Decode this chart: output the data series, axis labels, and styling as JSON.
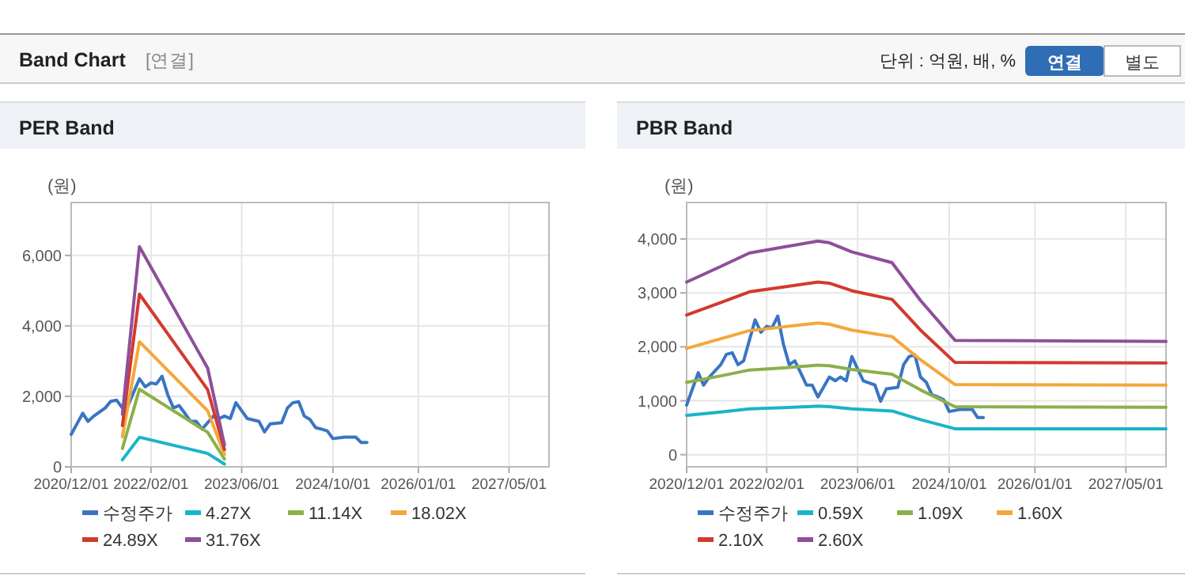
{
  "chart_data": [
    {
      "type": "other",
      "title": "Band Chart",
      "annotations": [
        "[연결]",
        "단위 : 억원, 배, %",
        "연결",
        "별도"
      ]
    },
    {
      "type": "line",
      "title": "PER Band",
      "ylabel": "(원)",
      "xlim": [
        "2020-12-01",
        "2027-12-01"
      ],
      "xticks": [
        {
          "value": "2020-12-01",
          "label": "2020/12/01"
        },
        {
          "value": "2022-02-01",
          "label": "2022/02/01"
        },
        {
          "value": "2023-06-01",
          "label": "2023/06/01"
        },
        {
          "value": "2024-10-01",
          "label": "2024/10/01"
        },
        {
          "value": "2026-01-01",
          "label": "2026/01/01"
        },
        {
          "value": "2027-05-01",
          "label": "2027/05/01"
        }
      ],
      "ylim": [
        0,
        7500
      ],
      "yticks": [
        {
          "value": 0,
          "label": "0"
        },
        {
          "value": 2000,
          "label": "2,000"
        },
        {
          "value": 4000,
          "label": "4,000"
        },
        {
          "value": 6000,
          "label": "6,000"
        }
      ],
      "grid": true,
      "legend": "bottom",
      "series": [
        {
          "name": "수정주가",
          "color": "#3a75c4",
          "x": [
            "2020-12",
            "2021-01",
            "2021-02",
            "2021-03",
            "2021-04",
            "2021-06",
            "2021-07",
            "2021-08",
            "2021-09",
            "2021-10",
            "2021-12",
            "2022-01",
            "2022-02",
            "2022-03",
            "2022-04",
            "2022-05",
            "2022-06",
            "2022-07",
            "2022-08",
            "2022-09",
            "2022-10",
            "2022-11",
            "2023-01",
            "2023-02",
            "2023-03",
            "2023-04",
            "2023-05",
            "2023-06",
            "2023-07",
            "2023-09",
            "2023-10",
            "2023-11",
            "2024-01",
            "2024-02",
            "2024-03",
            "2024-04",
            "2024-05",
            "2024-06",
            "2024-07",
            "2024-08",
            "2024-09",
            "2024-10",
            "2024-12",
            "2025-02",
            "2025-03",
            "2025-04"
          ],
          "values": [
            920,
            1220,
            1520,
            1290,
            1440,
            1670,
            1860,
            1890,
            1670,
            1740,
            2500,
            2270,
            2380,
            2350,
            2570,
            2050,
            1670,
            1740,
            1520,
            1290,
            1290,
            1070,
            1440,
            1370,
            1440,
            1370,
            1820,
            1590,
            1370,
            1290,
            990,
            1220,
            1250,
            1670,
            1820,
            1850,
            1440,
            1340,
            1110,
            1070,
            1020,
            800,
            840,
            840,
            690,
            690
          ]
        },
        {
          "name": "4.27X",
          "color": "#18b5c8",
          "x": [
            "2021-09",
            "2021-12",
            "2022-12",
            "2023-03"
          ],
          "values": [
            200,
            840,
            380,
            80
          ]
        },
        {
          "name": "11.14X",
          "color": "#8cb04a",
          "x": [
            "2021-09",
            "2021-12",
            "2022-12",
            "2023-03"
          ],
          "values": [
            520,
            2200,
            980,
            220
          ]
        },
        {
          "name": "18.02X",
          "color": "#f4a73a",
          "x": [
            "2021-09",
            "2021-12",
            "2022-12",
            "2023-03"
          ],
          "values": [
            850,
            3550,
            1590,
            350
          ]
        },
        {
          "name": "24.89X",
          "color": "#d23a2f",
          "x": [
            "2021-09",
            "2021-12",
            "2022-12",
            "2023-03"
          ],
          "values": [
            1170,
            4900,
            2190,
            490
          ]
        },
        {
          "name": "31.76X",
          "color": "#8e4f9a",
          "x": [
            "2021-09",
            "2021-12",
            "2022-12",
            "2023-03"
          ],
          "values": [
            1490,
            6250,
            2800,
            620
          ]
        }
      ]
    },
    {
      "type": "line",
      "title": "PBR Band",
      "ylabel": "(원)",
      "xlim": [
        "2020-12-01",
        "2027-12-01"
      ],
      "xticks": [
        {
          "value": "2020-12-01",
          "label": "2020/12/01"
        },
        {
          "value": "2022-02-01",
          "label": "2022/02/01"
        },
        {
          "value": "2023-06-01",
          "label": "2023/06/01"
        },
        {
          "value": "2024-10-01",
          "label": "2024/10/01"
        },
        {
          "value": "2026-01-01",
          "label": "2026/01/01"
        },
        {
          "value": "2027-05-01",
          "label": "2027/05/01"
        }
      ],
      "ylim": [
        -225,
        4675
      ],
      "yticks": [
        {
          "value": 0,
          "label": "0"
        },
        {
          "value": 1000,
          "label": "1,000"
        },
        {
          "value": 2000,
          "label": "2,000"
        },
        {
          "value": 3000,
          "label": "3,000"
        },
        {
          "value": 4000,
          "label": "4,000"
        }
      ],
      "grid": true,
      "legend": "bottom",
      "series": [
        {
          "name": "수정주가",
          "color": "#3a75c4",
          "x": [
            "2020-12",
            "2021-01",
            "2021-02",
            "2021-03",
            "2021-04",
            "2021-06",
            "2021-07",
            "2021-08",
            "2021-09",
            "2021-10",
            "2021-12",
            "2022-01",
            "2022-02",
            "2022-03",
            "2022-04",
            "2022-05",
            "2022-06",
            "2022-07",
            "2022-08",
            "2022-09",
            "2022-10",
            "2022-11",
            "2023-01",
            "2023-02",
            "2023-03",
            "2023-04",
            "2023-05",
            "2023-06",
            "2023-07",
            "2023-09",
            "2023-10",
            "2023-11",
            "2024-01",
            "2024-02",
            "2024-03",
            "2024-04",
            "2024-05",
            "2024-06",
            "2024-07",
            "2024-08",
            "2024-09",
            "2024-10",
            "2024-12",
            "2025-02",
            "2025-03",
            "2025-04"
          ],
          "values": [
            920,
            1220,
            1520,
            1290,
            1440,
            1670,
            1860,
            1890,
            1670,
            1740,
            2500,
            2270,
            2380,
            2350,
            2570,
            2050,
            1670,
            1740,
            1520,
            1290,
            1290,
            1070,
            1440,
            1370,
            1440,
            1370,
            1820,
            1590,
            1370,
            1290,
            990,
            1220,
            1250,
            1670,
            1820,
            1850,
            1440,
            1340,
            1110,
            1070,
            1020,
            800,
            840,
            840,
            690,
            690
          ]
        },
        {
          "name": "0.59X",
          "color": "#18b5c8",
          "x": [
            "2020-12",
            "2021-06",
            "2021-11",
            "2022-05",
            "2022-11",
            "2023-01",
            "2023-05",
            "2023-12",
            "2024-05",
            "2024-11",
            "2027-12"
          ],
          "values": [
            730,
            790,
            850,
            870,
            900,
            890,
            850,
            810,
            650,
            480,
            480
          ]
        },
        {
          "name": "1.09X",
          "color": "#8cb04a",
          "x": [
            "2020-12",
            "2021-06",
            "2021-11",
            "2022-05",
            "2022-11",
            "2023-01",
            "2023-05",
            "2023-12",
            "2024-05",
            "2024-11",
            "2027-12"
          ],
          "values": [
            1340,
            1460,
            1570,
            1610,
            1660,
            1650,
            1580,
            1490,
            1200,
            890,
            880
          ]
        },
        {
          "name": "1.60X",
          "color": "#f4a73a",
          "x": [
            "2020-12",
            "2021-06",
            "2021-11",
            "2022-05",
            "2022-11",
            "2023-01",
            "2023-05",
            "2023-12",
            "2024-05",
            "2024-11",
            "2027-12"
          ],
          "values": [
            1970,
            2150,
            2300,
            2370,
            2440,
            2420,
            2310,
            2190,
            1760,
            1300,
            1290
          ]
        },
        {
          "name": "2.10X",
          "color": "#d23a2f",
          "x": [
            "2020-12",
            "2021-06",
            "2021-11",
            "2022-05",
            "2022-11",
            "2023-01",
            "2023-05",
            "2023-12",
            "2024-05",
            "2024-11",
            "2027-12"
          ],
          "values": [
            2590,
            2820,
            3020,
            3110,
            3200,
            3180,
            3040,
            2880,
            2310,
            1710,
            1700
          ]
        },
        {
          "name": "2.60X",
          "color": "#8e4f9a",
          "x": [
            "2020-12",
            "2021-06",
            "2021-11",
            "2022-05",
            "2022-11",
            "2023-01",
            "2023-05",
            "2023-12",
            "2024-05",
            "2024-11",
            "2027-12"
          ],
          "values": [
            3200,
            3490,
            3740,
            3850,
            3960,
            3930,
            3760,
            3560,
            2860,
            2120,
            2100
          ]
        }
      ]
    }
  ]
}
